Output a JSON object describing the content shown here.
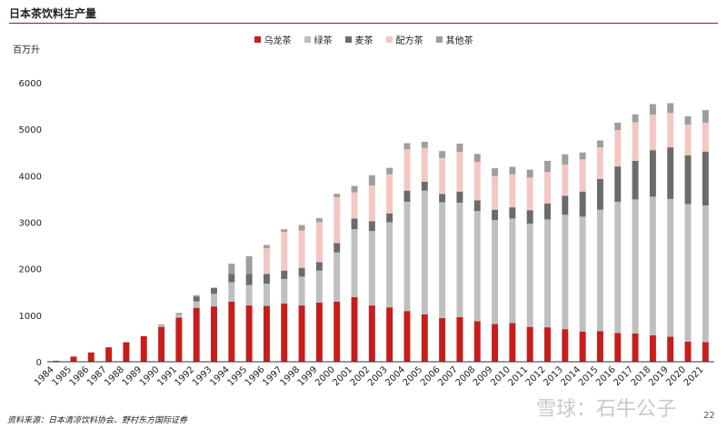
{
  "header": {
    "title": "日本茶饮料生产量",
    "unit_label": "百万升"
  },
  "footer": {
    "source": "资料来源：日本清凉饮料协会、野村东方国际证券",
    "watermark": "雪球：石牛公子",
    "page_number": "22"
  },
  "colors": {
    "wulong": "#c81d1d",
    "green": "#bfbfbf",
    "barley": "#6b6b6b",
    "blend": "#f4c7c3",
    "other": "#9e9e9e",
    "rule": "#8a1b1b"
  },
  "chart_data": {
    "type": "bar",
    "stacked": true,
    "categories": [
      "1984",
      "1985",
      "1986",
      "1987",
      "1988",
      "1989",
      "1990",
      "1991",
      "1992",
      "1993",
      "1994",
      "1995",
      "1996",
      "1997",
      "1998",
      "1999",
      "2000",
      "2001",
      "2002",
      "2003",
      "2004",
      "2005",
      "2006",
      "2007",
      "2008",
      "2009",
      "2010",
      "2011",
      "2012",
      "2013",
      "2014",
      "2015",
      "2016",
      "2017",
      "2018",
      "2019",
      "2020",
      "2021"
    ],
    "series": [
      {
        "name": "乌龙茶",
        "color": "#c81d1d",
        "values": [
          20,
          110,
          200,
          310,
          420,
          550,
          750,
          950,
          1160,
          1190,
          1290,
          1210,
          1200,
          1250,
          1210,
          1270,
          1290,
          1390,
          1210,
          1170,
          1090,
          1020,
          940,
          960,
          870,
          810,
          830,
          750,
          740,
          700,
          650,
          660,
          620,
          610,
          570,
          540,
          430,
          420
        ]
      },
      {
        "name": "绿茶",
        "color": "#bfbfbf",
        "values": [
          0,
          0,
          0,
          0,
          0,
          0,
          30,
          60,
          140,
          270,
          420,
          440,
          480,
          530,
          620,
          690,
          1060,
          1460,
          1600,
          1830,
          2350,
          2660,
          2490,
          2460,
          2370,
          2240,
          2250,
          2220,
          2320,
          2460,
          2470,
          2610,
          2820,
          2880,
          2980,
          2960,
          2960,
          2940
        ]
      },
      {
        "name": "麦茶",
        "color": "#6b6b6b",
        "values": [
          0,
          0,
          0,
          0,
          0,
          0,
          0,
          0,
          100,
          130,
          180,
          240,
          210,
          180,
          190,
          180,
          200,
          230,
          210,
          190,
          240,
          190,
          180,
          240,
          230,
          220,
          240,
          290,
          340,
          410,
          540,
          660,
          760,
          830,
          1000,
          1110,
          1050,
          1160
        ]
      },
      {
        "name": "配方茶",
        "color": "#f4c7c3",
        "values": [
          0,
          0,
          0,
          0,
          0,
          0,
          0,
          0,
          0,
          0,
          0,
          0,
          550,
          830,
          800,
          860,
          990,
          560,
          770,
          840,
          890,
          730,
          770,
          850,
          830,
          720,
          710,
          700,
          680,
          670,
          690,
          680,
          780,
          830,
          760,
          740,
          660,
          620
        ]
      },
      {
        "name": "其他茶",
        "color": "#9e9e9e",
        "values": [
          0,
          0,
          0,
          0,
          0,
          0,
          20,
          40,
          30,
          0,
          220,
          380,
          70,
          60,
          120,
          90,
          70,
          140,
          220,
          140,
          130,
          130,
          150,
          180,
          170,
          170,
          160,
          170,
          240,
          220,
          150,
          150,
          160,
          170,
          230,
          210,
          180,
          270
        ]
      }
    ],
    "ylim": [
      0,
      6000
    ],
    "yticks": [
      "0",
      "1000",
      "2000",
      "3000",
      "4000",
      "5000",
      "6000"
    ],
    "grid": false,
    "legend": "top-center"
  }
}
